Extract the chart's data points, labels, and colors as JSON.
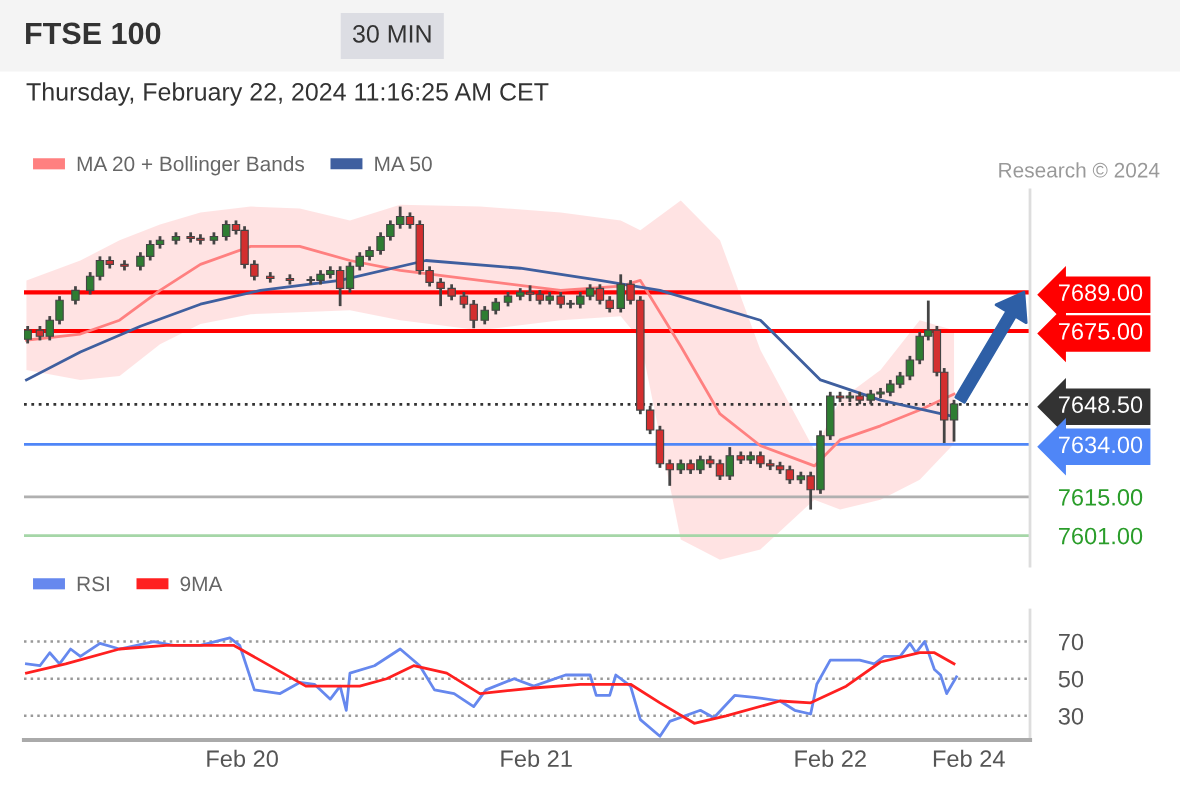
{
  "chart_data": [
    {
      "type": "candlestick",
      "title": "FTSE 100",
      "subtitle": "Thursday, February 22, 2024 11:16:25 AM CET",
      "annotations": [
        "30 MIN",
        "Research © 2024"
      ],
      "x": [
        "2024-02-19T06:30",
        "2024-02-19T07:30",
        "2024-02-19T08:18",
        "2024-02-19T09:06",
        "2024-02-19T10:24",
        "2024-02-19T11:36",
        "2024-02-19T12:24",
        "2024-02-19T13:12",
        "2024-02-19T14:24",
        "2024-02-19T15:42",
        "2024-02-19T16:30",
        "2024-02-19T17:18",
        "2024-02-19T18:36",
        "2024-02-19T19:48",
        "2024-02-19T20:36",
        "2024-02-19T21:42",
        "2024-02-19T22:42",
        "2024-02-19T23:30",
        "2024-02-20T00:12",
        "2024-02-20T01:00",
        "2024-02-20T02:18",
        "2024-02-20T03:54",
        "2024-02-20T05:36",
        "2024-02-20T06:24",
        "2024-02-20T07:12",
        "2024-02-20T08:00",
        "2024-02-20T08:48",
        "2024-02-20T09:36",
        "2024-02-20T10:24",
        "2024-02-20T11:18",
        "2024-02-20T12:06",
        "2024-02-20T12:54",
        "2024-02-20T13:42",
        "2024-02-20T14:30",
        "2024-02-20T15:18",
        "2024-02-20T16:12",
        "2024-02-20T17:06",
        "2024-02-20T18:06",
        "2024-02-20T18:54",
        "2024-02-20T19:48",
        "2024-02-20T20:42",
        "2024-02-20T21:42",
        "2024-02-20T22:42",
        "2024-02-20T23:30",
        "2024-02-21T00:18",
        "2024-02-21T01:06",
        "2024-02-21T02:00",
        "2024-02-21T02:48",
        "2024-02-21T03:36",
        "2024-02-21T04:24",
        "2024-02-21T05:12",
        "2024-02-21T06:00",
        "2024-02-21T06:54",
        "2024-02-21T07:42",
        "2024-02-21T08:30",
        "2024-02-21T09:18",
        "2024-02-21T10:06",
        "2024-02-21T10:54",
        "2024-02-21T11:48",
        "2024-02-21T12:36",
        "2024-02-21T13:24",
        "2024-02-21T14:12",
        "2024-02-21T15:00",
        "2024-02-21T15:48",
        "2024-02-21T16:42",
        "2024-02-21T17:30",
        "2024-02-21T18:18",
        "2024-02-21T19:06",
        "2024-02-21T19:54",
        "2024-02-21T20:42",
        "2024-02-21T21:36",
        "2024-02-21T22:24",
        "2024-02-21T23:12",
        "2024-02-22T00:00",
        "2024-02-22T00:48",
        "2024-02-22T01:36",
        "2024-02-22T02:24",
        "2024-02-22T03:18",
        "2024-02-22T04:06",
        "2024-02-22T04:54",
        "2024-02-22T05:42",
        "2024-02-22T06:30",
        "2024-02-22T07:18",
        "2024-02-22T08:00",
        "2024-02-22T08:42",
        "2024-02-22T09:18",
        "2024-02-22T10:06"
      ],
      "ohlc": [
        [
          7672.0,
          7676.8,
          7670.5,
          7675.3
        ],
        [
          7675.3,
          7676.8,
          7671.6,
          7673.1
        ],
        [
          7673.1,
          7680.4,
          7671.6,
          7678.9
        ],
        [
          7678.9,
          7687.6,
          7677.4,
          7686.1
        ],
        [
          7686.1,
          7691.2,
          7684.6,
          7689.7
        ],
        [
          7689.7,
          7696.3,
          7688.2,
          7694.8
        ],
        [
          7694.8,
          7702.0,
          7693.3,
          7700.5
        ],
        [
          7700.5,
          7702.0,
          7697.6,
          7699.1
        ],
        [
          7699.1,
          7700.6,
          7696.9,
          7698.4
        ],
        [
          7698.4,
          7703.5,
          7696.9,
          7702.0
        ],
        [
          7702.0,
          7707.8,
          7700.5,
          7706.3
        ],
        [
          7706.3,
          7709.3,
          7704.8,
          7707.8
        ],
        [
          7707.8,
          7710.7,
          7706.3,
          7709.2
        ],
        [
          7709.2,
          7710.7,
          7707.0,
          7708.5
        ],
        [
          7708.5,
          7710.0,
          7706.3,
          7707.8
        ],
        [
          7707.8,
          7710.7,
          7706.3,
          7709.2
        ],
        [
          7709.2,
          7715.0,
          7707.7,
          7713.5
        ],
        [
          7713.5,
          7715.0,
          7709.9,
          7711.4
        ],
        [
          7711.4,
          7712.9,
          7697.6,
          7699.1
        ],
        [
          7699.1,
          7700.6,
          7693.3,
          7694.8
        ],
        [
          7694.8,
          7696.3,
          7692.5,
          7694.0
        ],
        [
          7694.0,
          7695.5,
          7691.8,
          7693.3
        ],
        [
          7693.3,
          7694.8,
          7691.8,
          7693.3
        ],
        [
          7693.3,
          7697.0,
          7691.8,
          7695.5
        ],
        [
          7695.5,
          7698.4,
          7694.0,
          7696.9
        ],
        [
          7696.9,
          7698.4,
          7684.0,
          7690.4
        ],
        [
          7690.4,
          7699.9,
          7688.9,
          7698.4
        ],
        [
          7698.4,
          7703.5,
          7696.9,
          7702.0
        ],
        [
          7702.0,
          7705.6,
          7700.5,
          7704.1
        ],
        [
          7704.1,
          7710.7,
          7702.6,
          7709.2
        ],
        [
          7709.2,
          7715.0,
          7707.7,
          7713.5
        ],
        [
          7713.5,
          7720.0,
          7712.0,
          7716.4
        ],
        [
          7716.4,
          7717.9,
          7712.0,
          7713.5
        ],
        [
          7713.5,
          7715.0,
          7695.4,
          7696.9
        ],
        [
          7696.9,
          7698.4,
          7691.1,
          7692.6
        ],
        [
          7692.6,
          7694.1,
          7684.0,
          7690.4
        ],
        [
          7690.4,
          7691.9,
          7686.1,
          7687.6
        ],
        [
          7687.6,
          7689.1,
          7683.2,
          7684.7
        ],
        [
          7684.7,
          7686.2,
          7676.0,
          7678.9
        ],
        [
          7678.9,
          7684.0,
          7677.4,
          7682.5
        ],
        [
          7682.5,
          7686.9,
          7681.0,
          7685.4
        ],
        [
          7685.4,
          7689.1,
          7683.9,
          7687.6
        ],
        [
          7687.6,
          7690.5,
          7686.1,
          7689.0
        ],
        [
          7689.0,
          7691.5,
          7685.8,
          7688.3
        ],
        [
          7688.3,
          7689.8,
          7684.6,
          7686.1
        ],
        [
          7686.1,
          7689.1,
          7684.6,
          7687.6
        ],
        [
          7687.6,
          7689.1,
          7683.2,
          7684.7
        ],
        [
          7684.7,
          7686.2,
          7683.2,
          7684.7
        ],
        [
          7684.7,
          7689.1,
          7683.2,
          7687.6
        ],
        [
          7687.6,
          7691.9,
          7686.1,
          7690.4
        ],
        [
          7690.4,
          7691.9,
          7684.6,
          7686.1
        ],
        [
          7686.1,
          7687.6,
          7681.7,
          7683.2
        ],
        [
          7683.2,
          7695.5,
          7681.7,
          7691.9
        ],
        [
          7691.9,
          7693.4,
          7684.6,
          7686.1
        ],
        [
          7686.1,
          7687.6,
          7644.9,
          7646.4
        ],
        [
          7646.4,
          7647.9,
          7637.7,
          7639.2
        ],
        [
          7639.2,
          7640.7,
          7625.5,
          7627.0
        ],
        [
          7627.0,
          7628.5,
          7619.0,
          7624.8
        ],
        [
          7624.8,
          7628.5,
          7623.3,
          7627.0
        ],
        [
          7627.0,
          7628.5,
          7623.3,
          7624.8
        ],
        [
          7624.8,
          7629.9,
          7623.3,
          7628.4
        ],
        [
          7628.4,
          7629.9,
          7625.5,
          7627.0
        ],
        [
          7627.0,
          7628.5,
          7621.1,
          7622.6
        ],
        [
          7622.6,
          7633.0,
          7621.1,
          7629.9
        ],
        [
          7629.9,
          7631.4,
          7626.9,
          7628.4
        ],
        [
          7628.4,
          7631.4,
          7626.9,
          7629.9
        ],
        [
          7629.9,
          7631.4,
          7625.5,
          7627.0
        ],
        [
          7627.0,
          7628.5,
          7624.7,
          7626.2
        ],
        [
          7626.2,
          7627.7,
          7623.3,
          7624.8
        ],
        [
          7624.8,
          7626.3,
          7619.7,
          7621.2
        ],
        [
          7621.2,
          7624.1,
          7619.7,
          7622.6
        ],
        [
          7622.6,
          7624.1,
          7610.4,
          7617.6
        ],
        [
          7617.6,
          7639.0,
          7616.1,
          7637.1
        ],
        [
          7637.1,
          7653.0,
          7635.6,
          7651.5
        ],
        [
          7651.5,
          7653.0,
          7649.3,
          7650.8
        ],
        [
          7650.8,
          7653.0,
          7649.3,
          7651.5
        ],
        [
          7651.5,
          7653.0,
          7648.5,
          7650.0
        ],
        [
          7650.0,
          7653.7,
          7648.5,
          7652.2
        ],
        [
          7652.2,
          7654.4,
          7650.7,
          7652.9
        ],
        [
          7652.9,
          7657.3,
          7651.4,
          7655.8
        ],
        [
          7655.8,
          7660.2,
          7654.3,
          7658.7
        ],
        [
          7658.7,
          7666.0,
          7657.2,
          7664.5
        ],
        [
          7664.5,
          7674.6,
          7663.0,
          7673.1
        ],
        [
          7673.1,
          7686.0,
          7671.6,
          7675.3
        ],
        [
          7675.3,
          7676.8,
          7658.6,
          7660.1
        ],
        [
          7660.1,
          7661.6,
          7634.5,
          7642.8
        ],
        [
          7642.8,
          7650.1,
          7635.0,
          7648.6
        ]
      ],
      "series": [
        {
          "name": "MA 20 + Bollinger Bands",
          "type": "line",
          "color": "#ff8080",
          "x": [
            "2024-02-19T06:24",
            "2024-02-19T10:48",
            "2024-02-19T14:00",
            "2024-02-19T17:18",
            "2024-02-19T20:36",
            "2024-02-20T00:42",
            "2024-02-20T04:42",
            "2024-02-20T08:48",
            "2024-02-20T12:54",
            "2024-02-20T19:24",
            "2024-02-21T02:00",
            "2024-02-21T06:54",
            "2024-02-21T08:30",
            "2024-02-21T11:48",
            "2024-02-21T15:00",
            "2024-02-21T18:18",
            "2024-02-21T22:42",
            "2024-02-22T00:48",
            "2024-02-22T04:06",
            "2024-02-22T07:18",
            "2024-02-22T10:06"
          ],
          "values": [
            7671.7,
            7673.9,
            7678.9,
            7689.7,
            7699.1,
            7705.6,
            7705.6,
            7700.5,
            7696.9,
            7693.3,
            7689.7,
            7691.2,
            7693.3,
            7669.5,
            7645.0,
            7633.5,
            7626.2,
            7635.6,
            7640.7,
            7646.4,
            7652.2
          ],
          "upper": [
            7693.3,
            7700.5,
            7707.8,
            7713.5,
            7717.9,
            7720.0,
            7719.3,
            7715.0,
            7720.7,
            7720.0,
            7717.9,
            7715.0,
            7711.4,
            7722.2,
            7707.8,
            7668.1,
            7632.0,
            7650.0,
            7660.9,
            7678.9,
            7675.3
          ],
          "lower": [
            7660.9,
            7657.3,
            7658.7,
            7670.2,
            7677.5,
            7681.1,
            7681.8,
            7682.5,
            7678.9,
            7675.3,
            7678.9,
            7680.3,
            7671.7,
            7599.6,
            7592.3,
            7596.0,
            7614.0,
            7610.4,
            7614.0,
            7621.2,
            7634.2
          ]
        },
        {
          "name": "MA 50",
          "type": "line",
          "color": "#3f5f9f",
          "x": [
            "2024-02-19T06:24",
            "2024-02-19T10:48",
            "2024-02-19T15:42",
            "2024-02-19T20:36",
            "2024-02-20T01:30",
            "2024-02-20T08:00",
            "2024-02-20T15:00",
            "2024-02-20T22:42",
            "2024-02-21T05:12",
            "2024-02-21T10:06",
            "2024-02-21T18:18",
            "2024-02-21T23:12",
            "2024-02-22T04:06",
            "2024-02-22T09:48"
          ],
          "values": [
            7657.3,
            7667.4,
            7676.7,
            7684.7,
            7689.7,
            7693.3,
            7700.5,
            7697.7,
            7693.3,
            7689.7,
            7678.9,
            7657.3,
            7650.0,
            7644.3
          ]
        }
      ],
      "ref_lines": [
        {
          "axis": "y",
          "value": 7689,
          "color": "#ff0000",
          "line_style": "solid"
        },
        {
          "axis": "y",
          "value": 7675,
          "color": "#ff0000",
          "line_style": "solid"
        },
        {
          "axis": "y",
          "value": 7648.5,
          "color": "#333333",
          "line_style": "dotted"
        },
        {
          "axis": "y",
          "value": 7634,
          "color": "#4f86f7",
          "line_style": "solid"
        },
        {
          "axis": "y",
          "value": 7615,
          "color": "#b0b0b0",
          "line_style": "solid"
        },
        {
          "axis": "y",
          "value": 7601,
          "color": "#a5d6a7",
          "line_style": "solid"
        }
      ],
      "yticks": [
        {
          "value": 7689,
          "label": "7689.00"
        },
        {
          "value": 7675,
          "label": "7675.00"
        },
        {
          "value": 7648.5,
          "label": "7648.50"
        },
        {
          "value": 7634,
          "label": "7634.00"
        },
        {
          "value": 7615,
          "label": "7615.00"
        },
        {
          "value": 7601,
          "label": "7601.00"
        }
      ],
      "xlim": [
        "2024-02-19T06:12",
        "2024-02-22T16:18"
      ],
      "ylim": [
        7590,
        7726
      ],
      "tick_labels": "y",
      "legend": "top left"
    },
    {
      "type": "line",
      "xlim": [
        "2024-02-19T06:12",
        "2024-02-22T16:18"
      ],
      "ylim": [
        17,
        87
      ],
      "yticks": [
        30,
        50,
        70
      ],
      "grid": "y",
      "legend": "top left",
      "xticks": [
        {
          "value": "2024-02-20",
          "label": "Feb 20"
        },
        {
          "value": "2024-02-21",
          "label": "Feb 21"
        },
        {
          "value": "2024-02-22",
          "label": "Feb 22"
        },
        {
          "value": "2024-02-22T11:18",
          "label": "Feb 24"
        }
      ],
      "series": [
        {
          "name": "RSI",
          "color": "#6688ee",
          "x": [
            "2024-02-19T06:24",
            "2024-02-19T07:30",
            "2024-02-19T08:18",
            "2024-02-19T09:06",
            "2024-02-19T10:00",
            "2024-02-19T10:48",
            "2024-02-19T12:24",
            "2024-02-19T14:00",
            "2024-02-19T16:48",
            "2024-02-19T18:24",
            "2024-02-19T20:36",
            "2024-02-19T23:00",
            "2024-02-19T23:48",
            "2024-02-20T01:00",
            "2024-02-20T03:06",
            "2024-02-20T04:42",
            "2024-02-20T05:54",
            "2024-02-20T07:12",
            "2024-02-20T08:00",
            "2024-02-20T08:30",
            "2024-02-20T08:48",
            "2024-02-20T10:48",
            "2024-02-20T12:54",
            "2024-02-20T14:30",
            "2024-02-20T15:42",
            "2024-02-20T17:18",
            "2024-02-20T18:54",
            "2024-02-20T19:54",
            "2024-02-20T22:12",
            "2024-02-20T23:48",
            "2024-02-21T02:24",
            "2024-02-21T03:36",
            "2024-02-21T04:24",
            "2024-02-21T04:54",
            "2024-02-21T06:00",
            "2024-02-21T06:30",
            "2024-02-21T07:42",
            "2024-02-21T08:30",
            "2024-02-21T10:06",
            "2024-02-21T10:54",
            "2024-02-21T13:24",
            "2024-02-21T14:30",
            "2024-02-21T16:12",
            "2024-02-21T17:48",
            "2024-02-21T19:54",
            "2024-02-21T21:06",
            "2024-02-21T22:24",
            "2024-02-21T22:54",
            "2024-02-22T00:00",
            "2024-02-22T02:24",
            "2024-02-22T03:36",
            "2024-02-22T04:24",
            "2024-02-22T05:42",
            "2024-02-22T06:30",
            "2024-02-22T07:00",
            "2024-02-22T07:42",
            "2024-02-22T08:30",
            "2024-02-22T09:00",
            "2024-02-22T09:30",
            "2024-02-22T10:18"
          ],
          "values": [
            58,
            57,
            64,
            58,
            66,
            62,
            69,
            66,
            70,
            68,
            68,
            72,
            68,
            44,
            42,
            48,
            47,
            39,
            46,
            33,
            53,
            57,
            66,
            57,
            44,
            42,
            35,
            44,
            50,
            46,
            52,
            52,
            52,
            41,
            41,
            52,
            46,
            28,
            19,
            27,
            33,
            29,
            41,
            40,
            38,
            33,
            31,
            47,
            60,
            60,
            58,
            62,
            62,
            69,
            64,
            70,
            55,
            52,
            42,
            51
          ]
        },
        {
          "name": "9MA",
          "color": "#ff2020",
          "x": [
            "2024-02-19T06:24",
            "2024-02-19T09:36",
            "2024-02-19T14:00",
            "2024-02-19T17:48",
            "2024-02-19T23:18",
            "2024-02-20T02:00",
            "2024-02-20T05:12",
            "2024-02-20T09:36",
            "2024-02-20T11:48",
            "2024-02-20T14:00",
            "2024-02-20T16:42",
            "2024-02-20T19:24",
            "2024-02-20T23:48",
            "2024-02-21T03:36",
            "2024-02-21T07:42",
            "2024-02-21T10:06",
            "2024-02-21T12:54",
            "2024-02-21T15:30",
            "2024-02-21T19:54",
            "2024-02-21T22:24",
            "2024-02-22T01:18",
            "2024-02-22T04:06",
            "2024-02-22T07:18",
            "2024-02-22T08:30",
            "2024-02-22T10:06"
          ],
          "values": [
            53,
            58,
            66,
            68,
            68,
            58,
            46,
            46,
            50,
            57,
            53,
            42,
            45,
            47,
            47,
            37,
            26,
            30,
            38,
            37,
            46,
            59,
            64,
            64,
            58
          ]
        }
      ]
    }
  ]
}
